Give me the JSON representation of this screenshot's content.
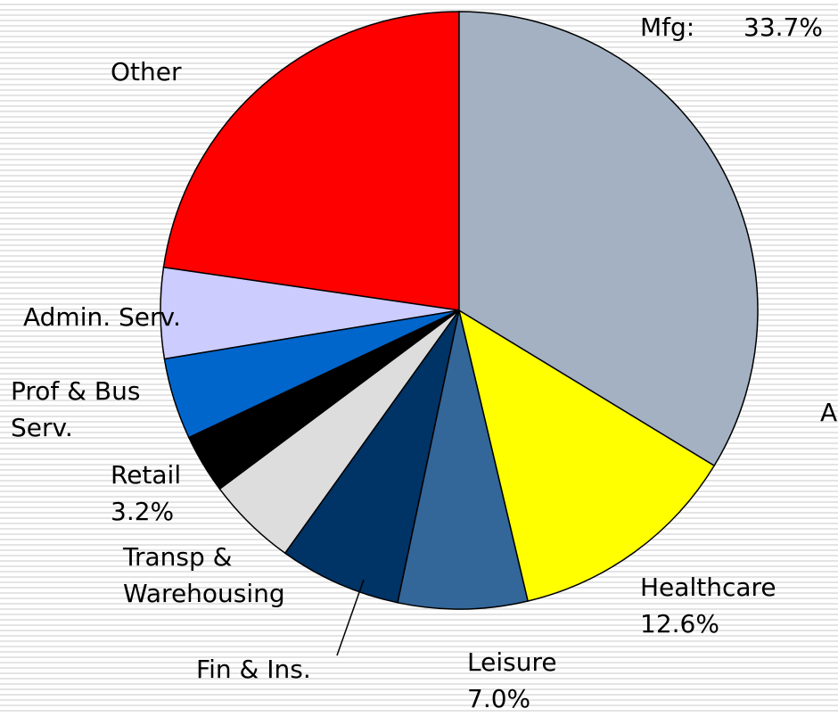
{
  "chart_data": {
    "type": "pie",
    "categories": [
      "Mfg:",
      "Healthcare",
      "Leisure",
      "Fin & Ins.",
      "Transp &\nWarehousing",
      "Retail",
      "Prof & Bus\nServ.",
      "Admin. Serv.",
      "Other"
    ],
    "values": [
      33.7,
      12.6,
      7.0,
      6.6,
      4.9,
      3.2,
      4.4,
      4.9,
      22.7
    ],
    "value_labels": [
      "33.7%",
      "12.6%",
      "7.0%",
      null,
      null,
      "3.2%",
      null,
      null,
      null
    ],
    "colors": [
      "#a3b1c2",
      "#ffff00",
      "#336699",
      "#003366",
      "#dddddd",
      "#000000",
      "#0066cc",
      "#ccccff",
      "#ff0000"
    ],
    "annotations": [
      "A"
    ]
  }
}
